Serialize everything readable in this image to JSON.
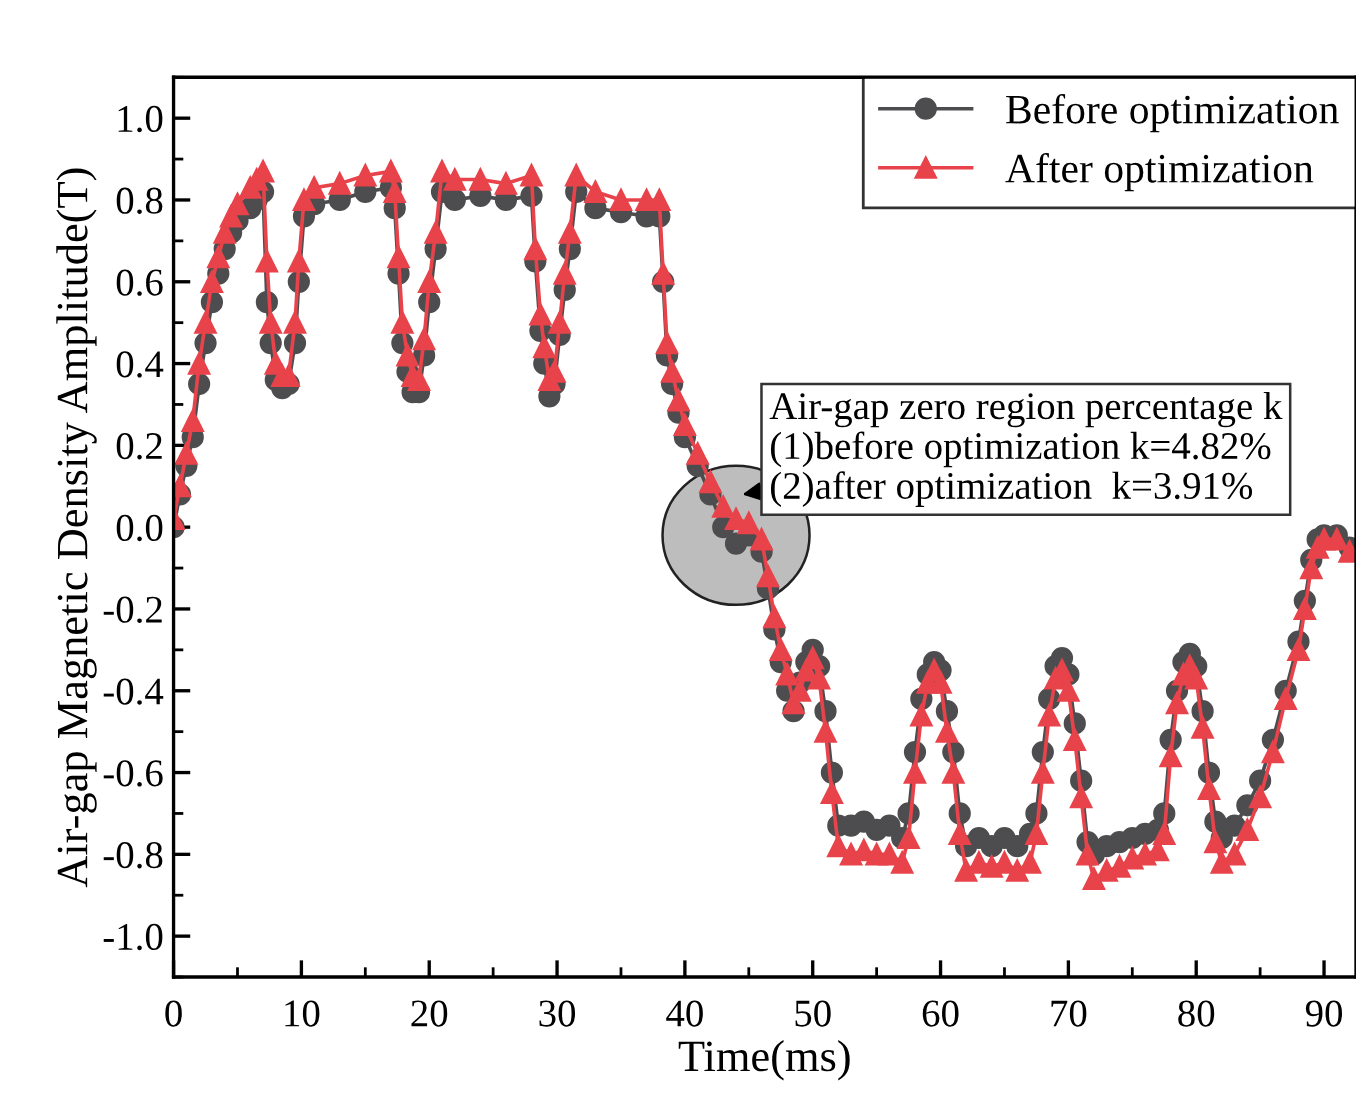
{
  "chart_data": {
    "type": "line",
    "xlabel": "Time(ms)",
    "ylabel": "Air-gap Magnetic Density Amplitude(T)",
    "xlim": [
      0,
      92.5
    ],
    "xticks": [
      0,
      10,
      20,
      30,
      40,
      50,
      60,
      70,
      80,
      90
    ],
    "ylim": [
      -1.1,
      1.1
    ],
    "yticks": [
      {
        "value": -1,
        "label": "-1.0"
      },
      {
        "value": -0.8,
        "label": "-0.8"
      },
      {
        "value": -0.6,
        "label": "-0.6"
      },
      {
        "value": -0.4,
        "label": "-0.4"
      },
      {
        "value": -0.2,
        "label": "-0.2"
      },
      {
        "value": 0,
        "label": "0.0"
      },
      {
        "value": 0.2,
        "label": "0.2"
      },
      {
        "value": 0.4,
        "label": "0.4"
      },
      {
        "value": 0.6,
        "label": "0.6"
      },
      {
        "value": 0.8,
        "label": "0.8"
      },
      {
        "value": 1,
        "label": "1.0"
      }
    ],
    "grid": false,
    "legend": "top right",
    "line_style": "solid",
    "annotations": [
      {
        "text": "Air-gap zero region percentage k\n(1)before optimization k=4.82%\n(2)after optimization  k=3.91%",
        "x": 44,
        "y": -0.02
      }
    ],
    "series": [
      {
        "name": "Before optimization",
        "color": "#4d4d4f",
        "marker": "circle",
        "x": [
          0,
          0.5,
          1,
          1.5,
          2,
          2.5,
          3,
          3.5,
          4,
          4.5,
          5,
          6,
          6.5,
          7,
          7.3,
          7.6,
          8,
          8.5,
          9,
          9.5,
          9.8,
          10.2,
          11,
          13,
          15,
          17,
          17.3,
          17.6,
          17.9,
          18.3,
          18.7,
          19.2,
          19.6,
          20,
          20.5,
          21,
          22,
          24,
          26,
          28,
          28.3,
          28.7,
          29,
          29.4,
          29.8,
          30.2,
          30.6,
          31,
          31.5,
          33,
          35,
          37,
          38,
          38.3,
          38.6,
          39,
          39.5,
          40,
          41,
          42,
          43,
          44,
          45,
          46,
          46.5,
          47,
          47.5,
          48,
          48.5,
          49,
          49.5,
          50,
          50.5,
          51,
          51.5,
          52,
          53,
          54,
          55,
          56,
          57,
          57.5,
          58,
          58.5,
          59,
          59.5,
          60,
          60.5,
          61,
          61.5,
          62,
          63,
          64,
          65,
          66,
          67,
          67.5,
          68,
          68.5,
          69,
          69.5,
          70,
          70.5,
          71,
          71.5,
          72,
          73,
          74,
          75,
          76,
          77,
          77.5,
          78,
          78.5,
          79,
          79.5,
          80,
          80.5,
          81,
          81.5,
          82,
          83,
          84,
          85,
          86,
          87,
          88,
          88.5,
          89,
          89.5,
          90,
          91,
          92
        ],
        "values": [
          0.0,
          0.08,
          0.15,
          0.22,
          0.35,
          0.45,
          0.55,
          0.62,
          0.68,
          0.72,
          0.75,
          0.78,
          0.8,
          0.82,
          0.55,
          0.45,
          0.36,
          0.34,
          0.35,
          0.45,
          0.6,
          0.76,
          0.79,
          0.8,
          0.82,
          0.83,
          0.78,
          0.62,
          0.45,
          0.38,
          0.33,
          0.33,
          0.42,
          0.55,
          0.68,
          0.82,
          0.8,
          0.81,
          0.8,
          0.81,
          0.65,
          0.48,
          0.4,
          0.32,
          0.35,
          0.47,
          0.58,
          0.68,
          0.82,
          0.78,
          0.77,
          0.76,
          0.76,
          0.6,
          0.42,
          0.35,
          0.28,
          0.22,
          0.15,
          0.08,
          0.0,
          -0.04,
          -0.02,
          -0.06,
          -0.15,
          -0.25,
          -0.33,
          -0.4,
          -0.45,
          -0.38,
          -0.33,
          -0.3,
          -0.34,
          -0.45,
          -0.6,
          -0.73,
          -0.73,
          -0.72,
          -0.74,
          -0.73,
          -0.76,
          -0.7,
          -0.55,
          -0.42,
          -0.36,
          -0.33,
          -0.35,
          -0.45,
          -0.55,
          -0.7,
          -0.78,
          -0.76,
          -0.78,
          -0.76,
          -0.78,
          -0.75,
          -0.7,
          -0.55,
          -0.42,
          -0.34,
          -0.32,
          -0.36,
          -0.48,
          -0.62,
          -0.77,
          -0.8,
          -0.78,
          -0.77,
          -0.76,
          -0.75,
          -0.74,
          -0.7,
          -0.52,
          -0.4,
          -0.33,
          -0.31,
          -0.34,
          -0.45,
          -0.6,
          -0.72,
          -0.76,
          -0.73,
          -0.68,
          -0.62,
          -0.52,
          -0.4,
          -0.28,
          -0.18,
          -0.08,
          -0.03,
          -0.02,
          -0.02,
          -0.05
        ]
      },
      {
        "name": "After optimization",
        "color": "#e8434a",
        "marker": "triangle",
        "x": [
          0,
          0.5,
          1,
          1.5,
          2,
          2.5,
          3,
          3.5,
          4,
          4.5,
          5,
          6,
          6.5,
          7,
          7.3,
          7.6,
          8,
          8.5,
          9,
          9.5,
          9.8,
          10.2,
          11,
          13,
          15,
          17,
          17.3,
          17.6,
          17.9,
          18.3,
          18.7,
          19.2,
          19.6,
          20,
          20.5,
          21,
          22,
          24,
          26,
          28,
          28.3,
          28.7,
          29,
          29.4,
          29.8,
          30.2,
          30.6,
          31,
          31.5,
          33,
          35,
          37,
          38,
          38.3,
          38.6,
          39,
          39.5,
          40,
          41,
          42,
          43,
          44,
          45,
          46,
          46.5,
          47,
          47.5,
          48,
          48.5,
          49,
          49.5,
          50,
          50.5,
          51,
          51.5,
          52,
          53,
          54,
          55,
          56,
          57,
          57.5,
          58,
          58.5,
          59,
          59.5,
          60,
          60.5,
          61,
          61.5,
          62,
          63,
          64,
          65,
          66,
          67,
          67.5,
          68,
          68.5,
          69,
          69.5,
          70,
          70.5,
          71,
          71.5,
          72,
          73,
          74,
          75,
          76,
          77,
          77.5,
          78,
          78.5,
          79,
          79.5,
          80,
          80.5,
          81,
          81.5,
          82,
          83,
          84,
          85,
          86,
          87,
          88,
          88.5,
          89,
          89.5,
          90,
          91,
          92
        ],
        "values": [
          0.02,
          0.1,
          0.18,
          0.26,
          0.4,
          0.5,
          0.6,
          0.66,
          0.72,
          0.76,
          0.79,
          0.83,
          0.85,
          0.87,
          0.65,
          0.5,
          0.4,
          0.37,
          0.37,
          0.5,
          0.65,
          0.8,
          0.83,
          0.84,
          0.86,
          0.87,
          0.82,
          0.66,
          0.5,
          0.42,
          0.37,
          0.36,
          0.46,
          0.6,
          0.72,
          0.87,
          0.85,
          0.85,
          0.84,
          0.86,
          0.68,
          0.52,
          0.44,
          0.36,
          0.38,
          0.5,
          0.62,
          0.72,
          0.86,
          0.82,
          0.8,
          0.8,
          0.8,
          0.62,
          0.45,
          0.38,
          0.31,
          0.25,
          0.18,
          0.11,
          0.05,
          0.02,
          0.01,
          -0.03,
          -0.12,
          -0.22,
          -0.3,
          -0.36,
          -0.43,
          -0.4,
          -0.35,
          -0.32,
          -0.37,
          -0.5,
          -0.65,
          -0.78,
          -0.8,
          -0.79,
          -0.8,
          -0.8,
          -0.82,
          -0.76,
          -0.6,
          -0.46,
          -0.38,
          -0.35,
          -0.38,
          -0.5,
          -0.6,
          -0.75,
          -0.84,
          -0.82,
          -0.83,
          -0.82,
          -0.84,
          -0.82,
          -0.75,
          -0.6,
          -0.46,
          -0.37,
          -0.35,
          -0.4,
          -0.52,
          -0.66,
          -0.8,
          -0.86,
          -0.84,
          -0.83,
          -0.81,
          -0.8,
          -0.79,
          -0.75,
          -0.56,
          -0.43,
          -0.36,
          -0.34,
          -0.37,
          -0.49,
          -0.64,
          -0.77,
          -0.82,
          -0.8,
          -0.74,
          -0.66,
          -0.55,
          -0.42,
          -0.3,
          -0.2,
          -0.1,
          -0.05,
          -0.03,
          -0.03,
          -0.06
        ]
      }
    ]
  }
}
